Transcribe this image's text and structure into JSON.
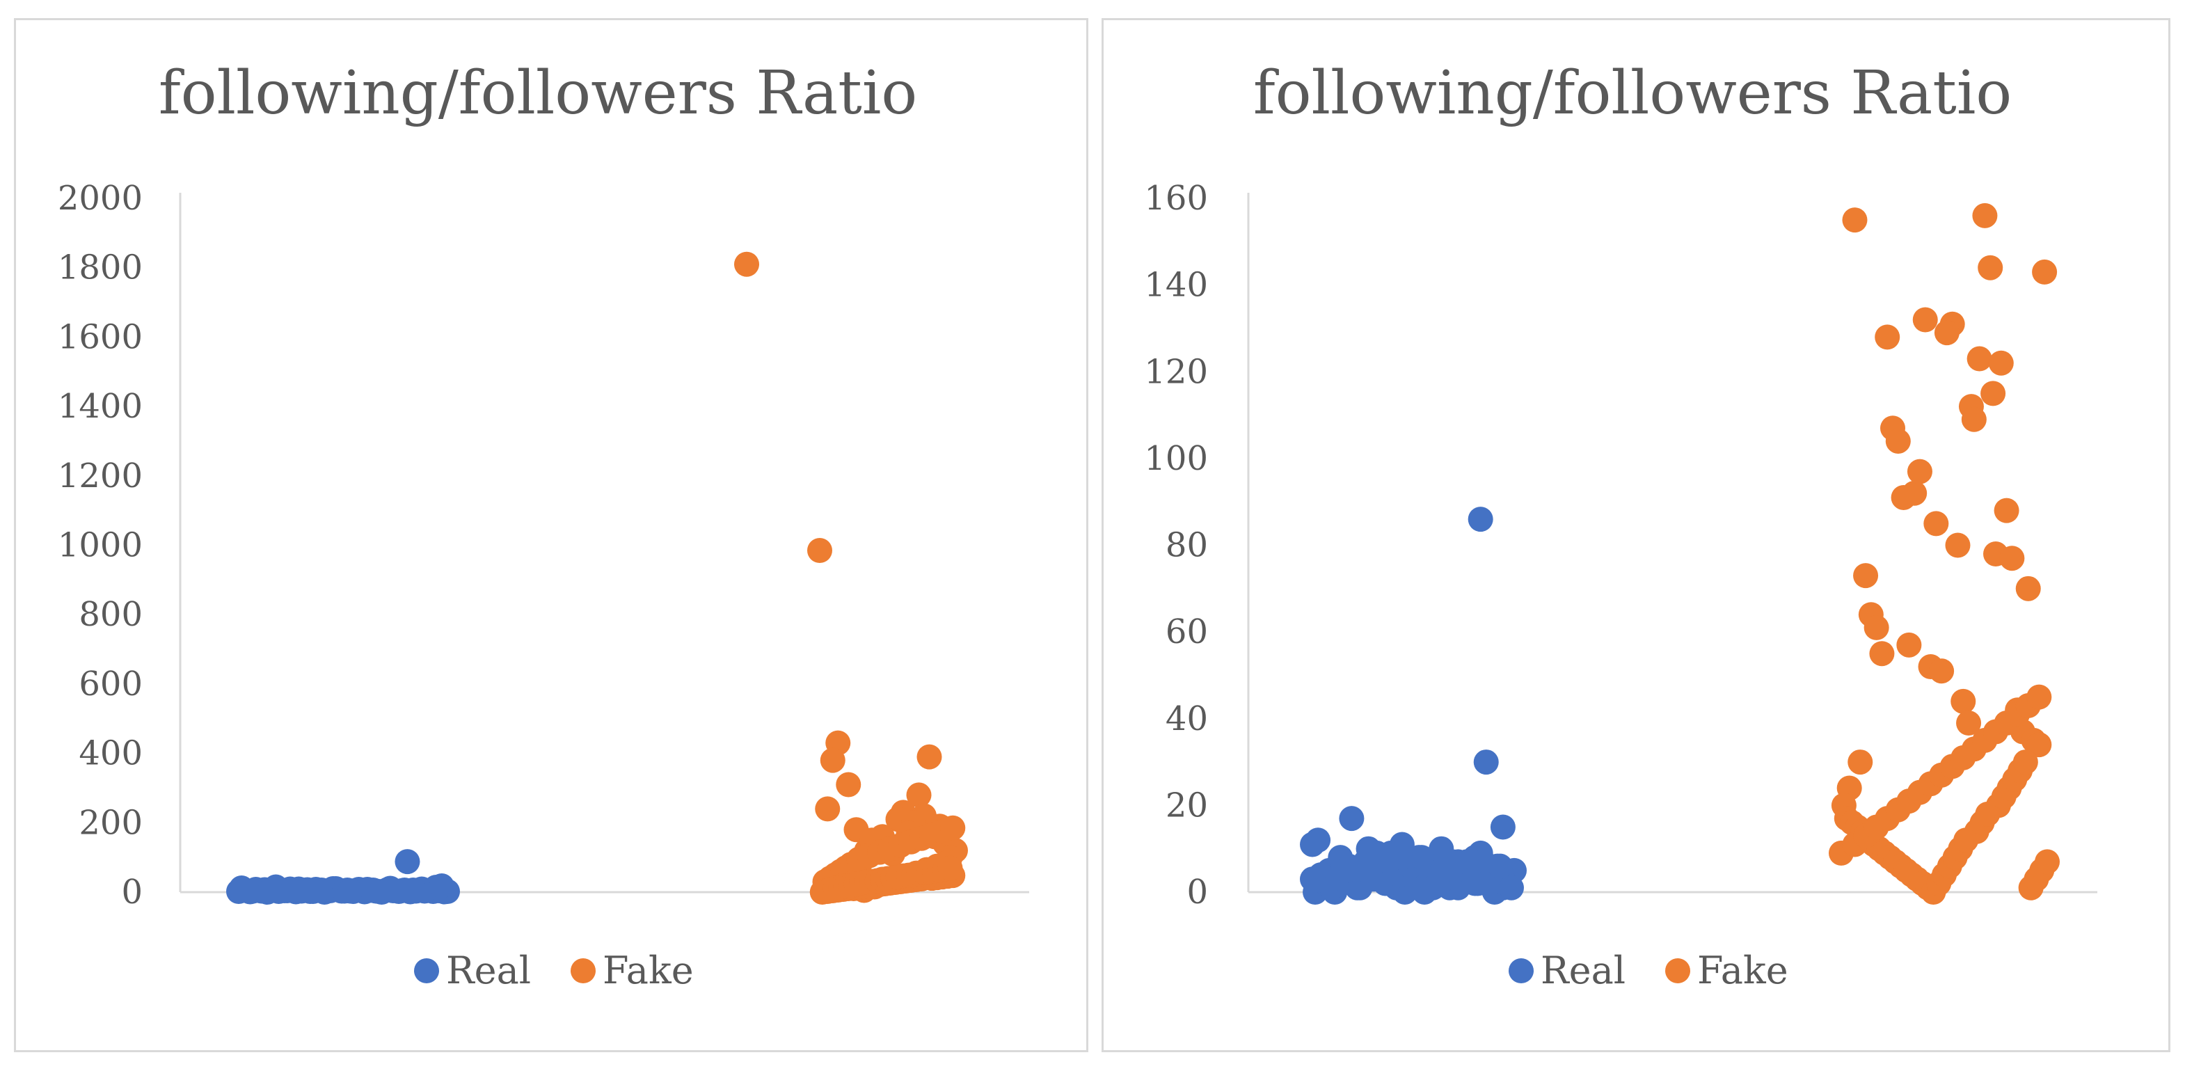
{
  "colors": {
    "real": "#4472C4",
    "fake": "#ED7D31",
    "axis": "#d9d9d9",
    "text": "#595959"
  },
  "chart_data": [
    {
      "type": "scatter",
      "title": "following/followers Ratio",
      "ylim": [
        0,
        2000
      ],
      "yticks": [
        "0",
        "200",
        "400",
        "600",
        "800",
        "1000",
        "1200",
        "1400",
        "1600",
        "1800",
        "2000"
      ],
      "grid": false,
      "legend_position": "bottom",
      "series": [
        {
          "name": "Real",
          "color": "#4472C4",
          "x": [
            1,
            3,
            5,
            7,
            9,
            11,
            13,
            15,
            17,
            19,
            21,
            23,
            25,
            27,
            29,
            31,
            33,
            35,
            37,
            39,
            41,
            43,
            45,
            47,
            49,
            51,
            53,
            55,
            57,
            59,
            61,
            63,
            65,
            67,
            69,
            71,
            73,
            2,
            6,
            10,
            14,
            18,
            22,
            26,
            30,
            34,
            38,
            42,
            46,
            50,
            54,
            58,
            62,
            66,
            70,
            74,
            12,
            28,
            40,
            48,
            60,
            72
          ],
          "y": [
            2,
            5,
            1,
            8,
            3,
            0,
            6,
            2,
            4,
            9,
            1,
            3,
            7,
            2,
            5,
            0,
            4,
            10,
            3,
            6,
            2,
            8,
            1,
            5,
            3,
            0,
            7,
            4,
            2,
            6,
            1,
            3,
            9,
            5,
            2,
            4,
            1,
            12,
            3,
            7,
            15,
            4,
            9,
            2,
            6,
            10,
            3,
            5,
            8,
            2,
            11,
            4,
            6,
            3,
            14,
            2,
            5,
            8,
            3,
            6,
            88,
            18
          ]
        },
        {
          "name": "Fake",
          "color": "#ED7D31",
          "x": [
            10,
            38,
            45,
            49,
            43,
            41,
            80,
            76,
            70,
            78,
            68,
            74,
            64,
            60,
            62,
            72,
            56,
            66,
            52,
            58,
            84,
            82,
            86,
            90,
            88,
            54,
            50,
            48,
            46,
            44,
            42,
            40,
            47,
            51,
            55,
            59,
            63,
            67,
            71,
            75,
            79,
            83,
            87,
            53,
            57,
            61,
            65,
            69,
            73,
            77,
            81,
            85,
            89,
            39,
            41,
            43,
            45,
            47,
            49,
            51,
            53,
            55,
            57,
            59,
            61,
            63,
            65,
            67,
            69,
            71,
            73,
            75,
            77,
            81,
            83,
            85,
            87,
            89,
            40,
            42,
            44,
            46,
            48,
            50,
            52,
            54,
            56,
            58,
            60,
            62,
            64,
            66,
            68,
            70,
            72,
            74,
            76,
            78,
            80,
            82,
            84,
            86,
            88
          ],
          "y": [
            1810,
            985,
            430,
            310,
            380,
            240,
            390,
            280,
            230,
            220,
            210,
            200,
            130,
            140,
            160,
            170,
            120,
            110,
            180,
            150,
            190,
            160,
            140,
            120,
            100,
            90,
            80,
            70,
            60,
            50,
            40,
            30,
            20,
            10,
            5,
            15,
            25,
            35,
            45,
            55,
            65,
            75,
            85,
            95,
            105,
            115,
            125,
            135,
            145,
            155,
            165,
            175,
            185,
            0,
            2,
            4,
            6,
            8,
            10,
            12,
            14,
            16,
            18,
            20,
            22,
            24,
            26,
            28,
            30,
            32,
            34,
            36,
            38,
            40,
            42,
            44,
            46,
            48,
            3,
            7,
            11,
            13,
            17,
            19,
            23,
            27,
            29,
            31,
            33,
            37,
            39,
            41,
            43,
            47,
            49,
            51,
            53,
            57,
            59,
            61,
            63,
            67,
            69
          ]
        }
      ]
    },
    {
      "type": "scatter",
      "title": "following/followers Ratio",
      "ylim": [
        0,
        160
      ],
      "yticks": [
        "0",
        "20",
        "40",
        "60",
        "80",
        "100",
        "120",
        "140",
        "160"
      ],
      "grid": false,
      "legend_position": "bottom",
      "series": [
        {
          "name": "Real",
          "color": "#4472C4",
          "x": [
            2,
            4,
            6,
            8,
            10,
            12,
            14,
            16,
            18,
            20,
            22,
            24,
            26,
            28,
            30,
            32,
            34,
            36,
            38,
            40,
            42,
            44,
            46,
            48,
            50,
            52,
            54,
            56,
            58,
            60,
            62,
            64,
            66,
            68,
            70,
            72,
            74,
            3,
            7,
            11,
            15,
            19,
            23,
            27,
            31,
            35,
            39,
            43,
            47,
            51,
            55,
            59,
            63,
            67,
            71,
            5,
            9,
            13,
            17,
            21,
            25,
            29,
            33,
            37,
            41,
            45,
            49,
            53,
            57,
            61,
            65,
            69,
            73,
            2,
            14,
            34,
            54,
            60,
            62,
            64,
            70
          ],
          "y": [
            11,
            12,
            2,
            5,
            0,
            8,
            4,
            17,
            1,
            6,
            10,
            3,
            7,
            2,
            9,
            1,
            11,
            5,
            3,
            8,
            0,
            6,
            4,
            10,
            2,
            7,
            1,
            5,
            3,
            8,
            9,
            2,
            4,
            6,
            1,
            3,
            5,
            0,
            2,
            4,
            6,
            1,
            3,
            5,
            7,
            0,
            2,
            4,
            6,
            1,
            3,
            5,
            7,
            0,
            2,
            4,
            1,
            3,
            5,
            7,
            9,
            2,
            4,
            6,
            8,
            1,
            3,
            5,
            7,
            2,
            4,
            6,
            1,
            3,
            5,
            8,
            7,
            2,
            86,
            30,
            15
          ]
        },
        {
          "name": "Fake",
          "color": "#ED7D31",
          "x": [
            6,
            54,
            76,
            42,
            40,
            32,
            56,
            52,
            60,
            49,
            50,
            57,
            18,
            20,
            22,
            28,
            30,
            24,
            36,
            44,
            58,
            62,
            64,
            70,
            12,
            10,
            14,
            16,
            26,
            34,
            38,
            46,
            48,
            66,
            68,
            72,
            74,
            8,
            4,
            2,
            3,
            5,
            7,
            9,
            11,
            13,
            15,
            17,
            19,
            21,
            23,
            25,
            27,
            29,
            31,
            33,
            35,
            37,
            39,
            41,
            43,
            45,
            47,
            51,
            53,
            55,
            59,
            61,
            63,
            65,
            67,
            69,
            71,
            73,
            75,
            77,
            1,
            6,
            10,
            14,
            18,
            22,
            26,
            30,
            34,
            38,
            42,
            46,
            50,
            54,
            58,
            62,
            66,
            70,
            74
          ],
          "y": [
            155,
            156,
            143,
            131,
            129,
            132,
            144,
            123,
            122,
            112,
            109,
            115,
            128,
            107,
            104,
            92,
            97,
            91,
            85,
            80,
            78,
            88,
            77,
            70,
            64,
            73,
            61,
            55,
            57,
            52,
            51,
            44,
            39,
            42,
            37,
            35,
            34,
            30,
            24,
            20,
            17,
            16,
            15,
            14,
            12,
            11,
            10,
            9,
            8,
            7,
            6,
            5,
            4,
            3,
            2,
            1,
            0,
            2,
            4,
            6,
            8,
            10,
            12,
            14,
            16,
            18,
            20,
            22,
            24,
            26,
            28,
            30,
            1,
            3,
            5,
            7,
            9,
            11,
            13,
            15,
            17,
            19,
            21,
            23,
            25,
            27,
            29,
            31,
            33,
            35,
            37,
            39,
            41,
            43,
            45
          ]
        }
      ]
    }
  ]
}
